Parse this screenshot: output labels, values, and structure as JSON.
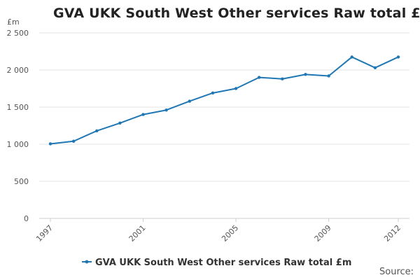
{
  "chart_data": {
    "type": "line",
    "title": "GVA UKK South West Other services Raw total £m",
    "ylabel": "£m",
    "xlabel": "",
    "x": [
      1997,
      1998,
      1999,
      2000,
      2001,
      2002,
      2003,
      2004,
      2005,
      2006,
      2007,
      2008,
      2009,
      2010,
      2011,
      2012
    ],
    "x_tick_labels": [
      "1997",
      "2001",
      "2005",
      "2009",
      "2012"
    ],
    "y_tick_labels": [
      "0",
      "500",
      "1 000",
      "1 500",
      "2 000",
      "2 500"
    ],
    "y_ticks": [
      0,
      500,
      1000,
      1500,
      2000,
      2500
    ],
    "xlim": [
      1997,
      2012
    ],
    "ylim": [
      0,
      2500
    ],
    "grid": "horizontal",
    "legend_position": "bottom",
    "series": [
      {
        "name": "GVA UKK South West Other services Raw total £m",
        "color": "#1f77b4",
        "values": [
          1005,
          1040,
          1180,
          1285,
          1400,
          1460,
          1580,
          1690,
          1750,
          1900,
          1880,
          1940,
          1920,
          2175,
          2030,
          2175
        ]
      }
    ]
  },
  "footer": {
    "source_label": "Source:"
  }
}
